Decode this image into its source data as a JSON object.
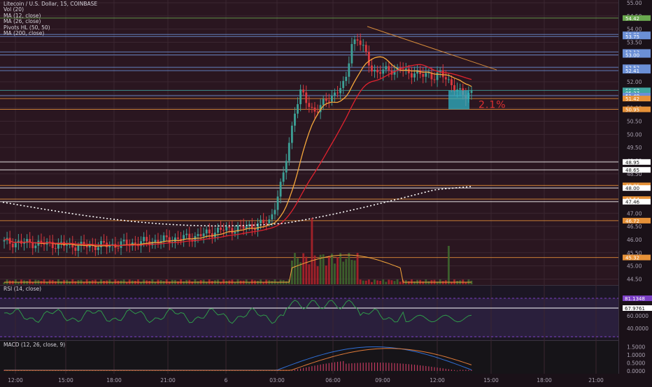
{
  "legend": {
    "title": "Litecoin / U.S. Dollar, 15, COINBASE",
    "indicators": [
      "Vol (20)",
      "MA (12, close)",
      "MA (26, close)",
      "Pivots HL (50, 50)",
      "MA (200, close)"
    ]
  },
  "rsi_label": "RSI (14, close)",
  "macd_label": "MACD (12, 26, close, 9)",
  "annotation_pct": "2.1%",
  "price_axis": {
    "ticks": [
      "55.00",
      "54.50",
      "54.00",
      "53.50",
      "53.00",
      "52.50",
      "52.00",
      "51.50",
      "51.00",
      "50.50",
      "50.00",
      "49.50",
      "49.00",
      "48.50",
      "48.00",
      "47.50",
      "47.00",
      "46.50",
      "46.00",
      "45.50",
      "45.00",
      "44.50"
    ],
    "markers": [
      {
        "text": "54.42",
        "v": 54.42,
        "color": "#6aa84f"
      },
      {
        "text": "53.80",
        "v": 53.8,
        "color": "#6b8fd6"
      },
      {
        "text": "53.75",
        "v": 53.72,
        "color": "#6b8fd6"
      },
      {
        "text": "53.13",
        "v": 53.13,
        "color": "#6b8fd6"
      },
      {
        "text": "53.00",
        "v": 53.02,
        "color": "#6b8fd6"
      },
      {
        "text": "52.52",
        "v": 52.55,
        "color": "#6b8fd6"
      },
      {
        "text": "52.41",
        "v": 52.42,
        "color": "#6b8fd6"
      },
      {
        "text": "51.67",
        "v": 51.67,
        "color": "#3fa6a1"
      },
      {
        "text": "05:37",
        "v": 51.58,
        "color": "#3fa6a1"
      },
      {
        "text": "51.49",
        "v": 51.47,
        "color": "#6b8fd6"
      },
      {
        "text": "51.42",
        "v": 51.36,
        "color": "#e69138"
      },
      {
        "text": "50.95",
        "v": 50.95,
        "color": "#e69138"
      },
      {
        "text": "48.95",
        "v": 48.95,
        "color": "#ffffff"
      },
      {
        "text": "48.65",
        "v": 48.65,
        "color": "#ffffff"
      },
      {
        "text": "48.06",
        "v": 48.06,
        "color": "#e69138"
      },
      {
        "text": "48.00",
        "v": 47.96,
        "color": "#ffffff"
      },
      {
        "text": "47.54",
        "v": 47.54,
        "color": "#e69138"
      },
      {
        "text": "47.46",
        "v": 47.44,
        "color": "#ffffff"
      },
      {
        "text": "46.72",
        "v": 46.72,
        "color": "#e69138"
      },
      {
        "text": "45.32",
        "v": 45.32,
        "color": "#e69138"
      }
    ]
  },
  "rsi_axis": {
    "ticks": [
      "60.0000",
      "40.0000"
    ],
    "markers": [
      {
        "text": "81.1348",
        "v": 81.13,
        "color": "#7b3fc4"
      },
      {
        "text": "67.9761",
        "v": 67.98,
        "color": "#ffffff"
      }
    ]
  },
  "macd_axis": {
    "ticks": [
      "1.5000",
      "1.0000",
      "0.5000",
      "0.0000"
    ]
  },
  "time_axis": {
    "labels": [
      "12:00",
      "15:00",
      "18:00",
      "21:00",
      "6",
      "03:00",
      "06:00",
      "09:00",
      "12:00",
      "15:00",
      "18:00",
      "21:00"
    ]
  },
  "colors": {
    "background": "#1a1118",
    "up": "#3d9f95",
    "down": "#d9393f",
    "ma12": "#f6a73b",
    "ma26": "#e0222e",
    "rsi_line": "#2f9a4a",
    "macd_line": "#2f6fd6",
    "signal_line": "#e07b39"
  },
  "chart_data": {
    "type": "candlestick",
    "symbol": "Litecoin / U.S. Dollar, 15, COINBASE",
    "x_time_labels": [
      "12:00",
      "15:00",
      "18:00",
      "21:00",
      "6",
      "03:00",
      "06:00",
      "09:00",
      "12:00",
      "15:00",
      "18:00",
      "21:00"
    ],
    "y_range": [
      44.3,
      55.0
    ],
    "price_path": [
      [
        0,
        45.9
      ],
      [
        6,
        45.85
      ],
      [
        12,
        45.75
      ],
      [
        18,
        45.8
      ],
      [
        24,
        45.95
      ],
      [
        30,
        46.1
      ],
      [
        34,
        46.35
      ],
      [
        38,
        46.45
      ],
      [
        40,
        46.55
      ],
      [
        42,
        46.7
      ],
      [
        43,
        47.4
      ],
      [
        44,
        48.2
      ],
      [
        45,
        49.5
      ],
      [
        46,
        50.9
      ],
      [
        47,
        51.6
      ],
      [
        48,
        51.2
      ],
      [
        49,
        50.9
      ],
      [
        50,
        51.0
      ],
      [
        51,
        51.3
      ],
      [
        52,
        51.5
      ],
      [
        53,
        51.7
      ],
      [
        54,
        51.9
      ],
      [
        55,
        53.5
      ],
      [
        56,
        53.6
      ],
      [
        57,
        53.2
      ],
      [
        58,
        52.6
      ],
      [
        59,
        52.3
      ],
      [
        60,
        52.4
      ],
      [
        61,
        52.5
      ],
      [
        62,
        52.4
      ],
      [
        63,
        52.5
      ],
      [
        64,
        52.3
      ],
      [
        65,
        52.4
      ],
      [
        66,
        52.2
      ],
      [
        67,
        52.3
      ],
      [
        68,
        52.2
      ],
      [
        69,
        52.3
      ],
      [
        70,
        52.1
      ],
      [
        71,
        51.9
      ],
      [
        72,
        51.6
      ],
      [
        73,
        51.4
      ],
      [
        74,
        51.67
      ]
    ],
    "horizontal_levels": [
      54.42,
      53.8,
      53.75,
      53.13,
      53.0,
      52.52,
      52.41,
      51.49,
      51.42,
      50.95,
      48.95,
      48.65,
      48.06,
      48.0,
      47.54,
      47.46,
      46.72,
      45.32
    ],
    "annotation_pct": "2.1%"
  }
}
